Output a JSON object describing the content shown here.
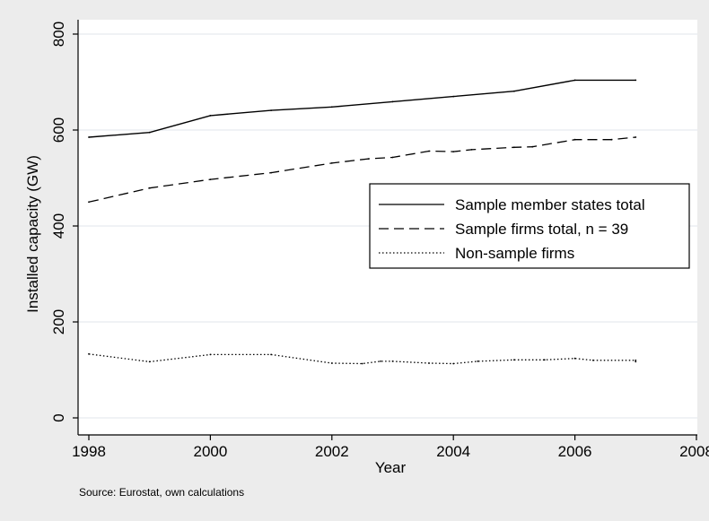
{
  "chart_data": {
    "type": "line",
    "title": "",
    "xlabel": "Year",
    "ylabel": "Installed capacity (GW)",
    "note": "Source: Eurostat, own calculations",
    "xlim": [
      1998,
      2008
    ],
    "ylim": [
      0,
      800
    ],
    "x_ticks": [
      1998,
      2000,
      2002,
      2004,
      2006,
      2008
    ],
    "y_ticks": [
      0,
      200,
      400,
      600,
      800
    ],
    "grid": true,
    "legend_position": "right",
    "series": [
      {
        "name": "Sample member states total",
        "style": "solid",
        "points": [
          [
            1998,
            585
          ],
          [
            1999,
            595
          ],
          [
            2000,
            630
          ],
          [
            2001,
            641
          ],
          [
            2002,
            648
          ],
          [
            2003,
            659
          ],
          [
            2004,
            670
          ],
          [
            2005,
            681
          ],
          [
            2006,
            704
          ],
          [
            2007,
            704
          ]
        ]
      },
      {
        "name": "Sample firms total, n = 39",
        "style": "dashed",
        "points": [
          [
            1998,
            450
          ],
          [
            1999,
            479
          ],
          [
            2000,
            497
          ],
          [
            2001,
            511
          ],
          [
            2002,
            531
          ],
          [
            2002.6,
            540
          ],
          [
            2003,
            543
          ],
          [
            2003.6,
            556
          ],
          [
            2004,
            555
          ],
          [
            2004.3,
            559
          ],
          [
            2005,
            564
          ],
          [
            2005.3,
            565
          ],
          [
            2006,
            580
          ],
          [
            2006.6,
            580
          ],
          [
            2007,
            585
          ]
        ]
      },
      {
        "name": "Non-sample firms",
        "style": "dotted",
        "points": [
          [
            1998,
            133
          ],
          [
            1999,
            117
          ],
          [
            2000,
            132
          ],
          [
            2001,
            132
          ],
          [
            2002,
            114
          ],
          [
            2002.5,
            113
          ],
          [
            2002.8,
            118
          ],
          [
            2003,
            118
          ],
          [
            2003.6,
            114
          ],
          [
            2004,
            113
          ],
          [
            2004.4,
            118
          ],
          [
            2005,
            121
          ],
          [
            2005.5,
            121
          ],
          [
            2006,
            124
          ],
          [
            2006.3,
            120
          ],
          [
            2007,
            120
          ],
          [
            2007,
            117
          ]
        ]
      }
    ]
  }
}
